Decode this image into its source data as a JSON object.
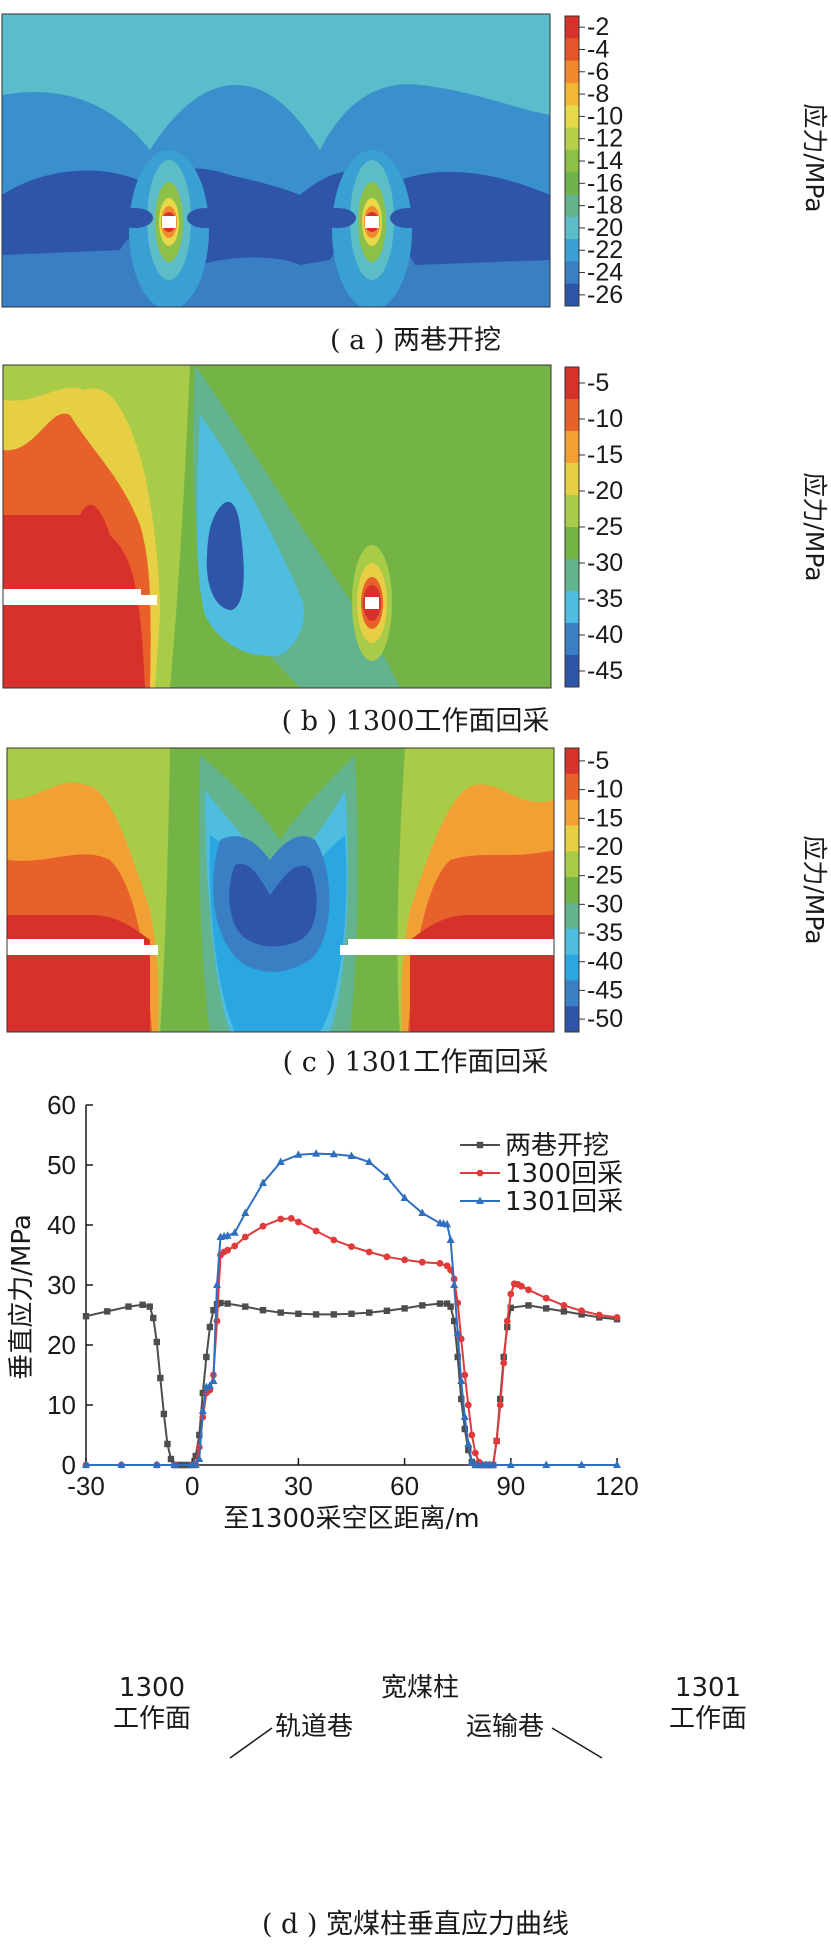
{
  "panels": {
    "a": {
      "caption": "( a ) 两巷开挖",
      "colorbar": {
        "title": "应力/MPa",
        "ticks": [
          "-2",
          "-4",
          "-6",
          "-8",
          "-10",
          "-12",
          "-14",
          "-16",
          "-18",
          "-20",
          "-22",
          "-24",
          "-26"
        ],
        "colors": [
          "#d7312b",
          "#e75429",
          "#f08a2d",
          "#f4b733",
          "#e6d848",
          "#b6d04a",
          "#8cc049",
          "#6fb34a",
          "#64b38a",
          "#5cbcc8",
          "#3a9fd2",
          "#3a7fc3",
          "#2e55a8"
        ]
      }
    },
    "b": {
      "caption": "( b ) 1300工作面回采",
      "colorbar": {
        "title": "应力/MPa",
        "ticks": [
          "-5",
          "-10",
          "-15",
          "-20",
          "-25",
          "-30",
          "-35",
          "-40",
          "-45"
        ],
        "colors": [
          "#d7312b",
          "#e8612b",
          "#f2a033",
          "#e7cf44",
          "#a9cc48",
          "#74b447",
          "#62b38e",
          "#4fbde0",
          "#3a7fc3",
          "#2e55a8"
        ]
      }
    },
    "c": {
      "caption": "( c ) 1301工作面回采",
      "colorbar": {
        "title": "应力/MPa",
        "ticks": [
          "-5",
          "-10",
          "-15",
          "-20",
          "-25",
          "-30",
          "-35",
          "-40",
          "-45",
          "-50"
        ],
        "colors": [
          "#d7312b",
          "#e8612b",
          "#f2a033",
          "#e7cf44",
          "#a9cc48",
          "#74b447",
          "#62b38e",
          "#4fbde0",
          "#2aa6e0",
          "#3a7fc3",
          "#2e55a8"
        ]
      }
    },
    "d": {
      "caption": "( d ) 宽煤柱垂直应力曲线",
      "annotations": {
        "left_zone_1": "1300",
        "left_zone_2": "工作面",
        "center_zone": "宽煤柱",
        "right_zone_1": "1301",
        "right_zone_2": "工作面",
        "track_roadway": "轨道巷",
        "transport_roadway": "运输巷"
      }
    }
  },
  "chart_data": {
    "type": "line",
    "xlabel": "至1300采空区距离/m",
    "ylabel": "垂直应力/MPa",
    "xlim": [
      -30,
      120
    ],
    "ylim": [
      0,
      60
    ],
    "xticks": [
      -30,
      0,
      30,
      60,
      90,
      120
    ],
    "yticks": [
      0,
      10,
      20,
      30,
      40,
      50,
      60
    ],
    "legend_position": "top-right",
    "series": [
      {
        "name": "两巷开挖",
        "color": "#4d4d4d",
        "marker": "square",
        "x": [
          -30,
          -24,
          -18,
          -14,
          -12,
          -11,
          -10,
          -9,
          -8,
          -7,
          -6,
          -5,
          -4,
          -3,
          -2,
          -1,
          0,
          1,
          2,
          3,
          4,
          5,
          6,
          7,
          8,
          10,
          15,
          20,
          25,
          30,
          35,
          40,
          45,
          50,
          55,
          60,
          65,
          70,
          72,
          73,
          74,
          75,
          76,
          77,
          78,
          79,
          80,
          81,
          82,
          83,
          84,
          85,
          86,
          87,
          88,
          89,
          90,
          95,
          100,
          105,
          110,
          115,
          120
        ],
        "y": [
          24.8,
          25.6,
          26.4,
          26.7,
          26.4,
          24.5,
          20.5,
          14.5,
          8.5,
          3.5,
          1,
          0,
          0,
          0,
          0,
          0,
          0,
          1.5,
          5,
          12,
          18,
          23,
          25.8,
          26.8,
          27,
          26.9,
          26.4,
          25.8,
          25.4,
          25.2,
          25.1,
          25.1,
          25.2,
          25.4,
          25.7,
          26.1,
          26.6,
          26.9,
          26.9,
          26.4,
          24,
          18,
          11,
          6,
          2.5,
          0.5,
          0,
          0,
          0,
          0,
          0,
          0,
          4,
          11,
          18,
          23,
          26.2,
          26.6,
          26.1,
          25.6,
          25.1,
          24.6,
          24.3
        ]
      },
      {
        "name": "1300回采",
        "color": "#e03a3a",
        "marker": "circle",
        "x": [
          -30,
          -20,
          -10,
          -5,
          0,
          1,
          2,
          3,
          4,
          5,
          6,
          7,
          8,
          9,
          10,
          12,
          15,
          20,
          25,
          28,
          30,
          35,
          40,
          45,
          50,
          55,
          60,
          65,
          70,
          72,
          73,
          74,
          75,
          76,
          77,
          78,
          79,
          80,
          81,
          82,
          83,
          84,
          85,
          86,
          87,
          88,
          89,
          90,
          91,
          92,
          93,
          95,
          100,
          105,
          110,
          115,
          120
        ],
        "y": [
          0,
          0,
          0,
          0,
          0,
          0,
          3,
          8,
          12,
          12.5,
          15,
          24,
          35,
          35.5,
          35.8,
          36.5,
          38,
          39.8,
          41,
          41.1,
          40.5,
          39,
          37.5,
          36.4,
          35.5,
          34.7,
          34.2,
          33.8,
          33.6,
          33.2,
          32.5,
          31,
          27,
          21,
          15,
          10,
          5,
          2,
          0.5,
          0,
          0,
          0,
          0,
          4,
          10,
          17,
          24,
          28.5,
          30.2,
          30.1,
          29.8,
          29.2,
          27.8,
          26.6,
          25.7,
          25,
          24.6
        ]
      },
      {
        "name": "1301回采",
        "color": "#2f6fbf",
        "marker": "triangle",
        "x": [
          -30,
          -20,
          -10,
          -5,
          0,
          1,
          2,
          3,
          4,
          5,
          6,
          7,
          8,
          9,
          10,
          12,
          15,
          20,
          25,
          30,
          35,
          40,
          45,
          50,
          55,
          60,
          65,
          70,
          71,
          72,
          73,
          74,
          75,
          76,
          77,
          78,
          79,
          80,
          81,
          82,
          83,
          84,
          85,
          90,
          100,
          110,
          120
        ],
        "y": [
          0,
          0,
          0,
          0,
          0,
          0,
          1,
          9,
          13,
          13.2,
          14,
          30,
          38,
          38.1,
          38.2,
          38.7,
          42,
          47,
          50.5,
          51.7,
          51.9,
          51.8,
          51.5,
          50.5,
          48,
          44.5,
          42,
          40.3,
          40.2,
          40.1,
          37.5,
          30,
          22,
          14,
          8,
          3.5,
          0.5,
          0,
          0,
          0,
          0,
          0,
          0,
          0,
          0,
          0,
          0
        ]
      }
    ]
  }
}
